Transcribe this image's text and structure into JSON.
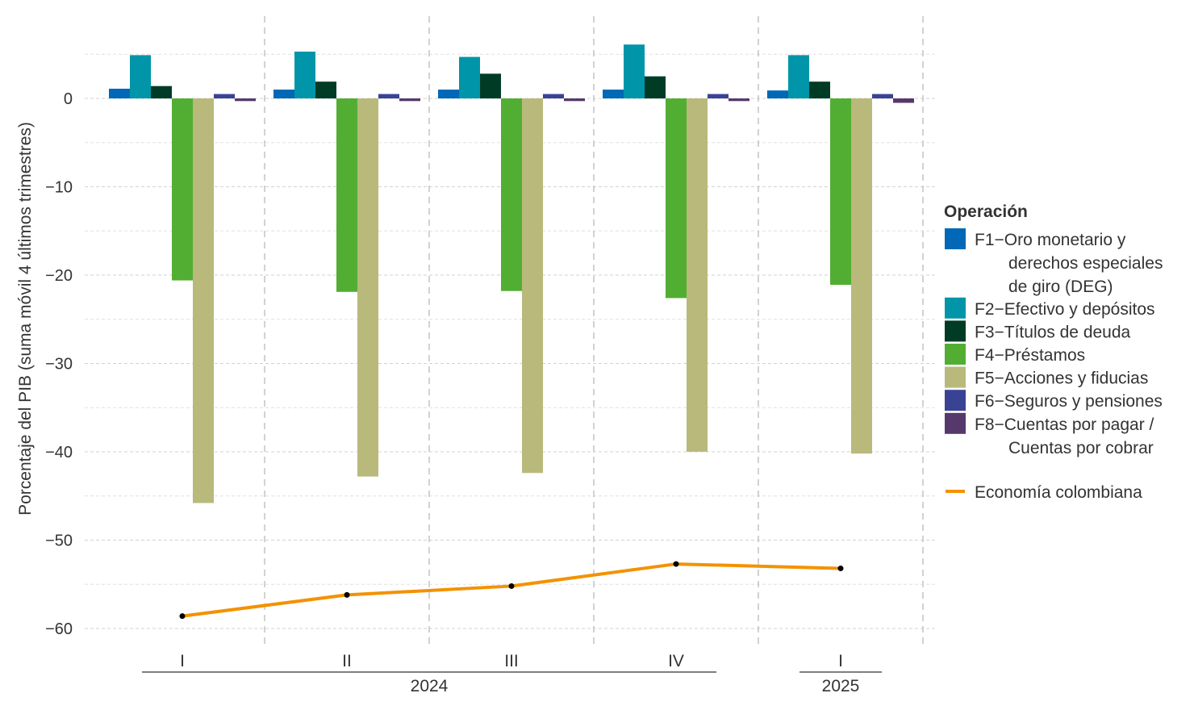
{
  "chart_data": {
    "type": "bar",
    "title": "",
    "xlabel": "",
    "ylabel": "Porcentaje del PIB (suma móvil 4 últimos trimestres)",
    "ylim": [
      -62,
      9.3
    ],
    "yticks": [
      0,
      -10,
      -20,
      -30,
      -40,
      -50,
      -60
    ],
    "grid": true,
    "legend_position": "right",
    "legend_title": "Operación",
    "categories": [
      "I",
      "II",
      "III",
      "IV",
      "I"
    ],
    "years": [
      {
        "label": "2024",
        "span": [
          0,
          3
        ]
      },
      {
        "label": "2025",
        "span": [
          4,
          4
        ]
      }
    ],
    "series": [
      {
        "name": "F1−Oro monetario y derechos especiales de giro (DEG)",
        "legend_lines": [
          "F1−Oro monetario y",
          "derechos especiales",
          "de giro (DEG)"
        ],
        "color": "#0068B6",
        "values": [
          1.1,
          1.0,
          1.0,
          1.0,
          0.9
        ]
      },
      {
        "name": "F2−Efectivo y depósitos",
        "legend_lines": [
          "F2−Efectivo y depósitos"
        ],
        "color": "#0095A8",
        "values": [
          4.9,
          5.3,
          4.7,
          6.1,
          4.9
        ]
      },
      {
        "name": "F3−Títulos de deuda",
        "legend_lines": [
          "F3−Títulos de deuda"
        ],
        "color": "#003B26",
        "values": [
          1.4,
          1.9,
          2.8,
          2.5,
          1.9
        ]
      },
      {
        "name": "F4−Préstamos",
        "legend_lines": [
          "F4−Préstamos"
        ],
        "color": "#52AE32",
        "values": [
          -20.6,
          -21.9,
          -21.8,
          -22.6,
          -21.1
        ]
      },
      {
        "name": "F5−Acciones y fiducias",
        "legend_lines": [
          "F5−Acciones y fiducias"
        ],
        "color": "#B8B97B",
        "values": [
          -45.8,
          -42.8,
          -42.4,
          -40.0,
          -40.2
        ]
      },
      {
        "name": "F6−Seguros y pensiones",
        "legend_lines": [
          "F6−Seguros y pensiones"
        ],
        "color": "#3A4393",
        "values": [
          0.5,
          0.5,
          0.5,
          0.5,
          0.5
        ]
      },
      {
        "name": "F8−Cuentas por pagar / Cuentas por cobrar",
        "legend_lines": [
          "F8−Cuentas por pagar /",
          "Cuentas por cobrar"
        ],
        "color": "#57386B",
        "values": [
          -0.3,
          -0.3,
          -0.3,
          -0.3,
          -0.5
        ]
      }
    ],
    "line": {
      "name": "Economía colombiana",
      "color": "#F39200",
      "values": [
        -58.6,
        -56.2,
        -55.2,
        -52.7,
        -53.2
      ]
    }
  }
}
